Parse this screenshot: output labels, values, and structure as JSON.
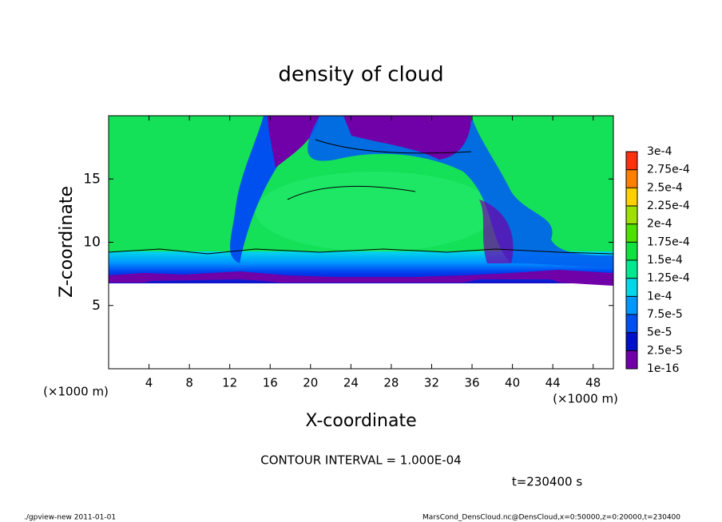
{
  "chart_data": {
    "type": "contour",
    "title": "density of cloud",
    "x_label": "X-coordinate",
    "y_label": "Z-coordinate",
    "x_unit": "(×1000 m)",
    "y_unit": "(×1000 m)",
    "xlim": [
      0,
      50
    ],
    "ylim": [
      0,
      20
    ],
    "xticks": [
      4,
      8,
      12,
      16,
      20,
      24,
      28,
      32,
      36,
      40,
      44,
      48
    ],
    "yticks": [
      5,
      10,
      15
    ],
    "colorbar": {
      "levels": [
        1e-16,
        {
          "value": 2.5e-05,
          "label": "2.5e-5"
        },
        {
          "value": 5e-05,
          "label": "5e-5"
        },
        {
          "value": 7.5e-05,
          "label": "7.5e-5"
        },
        {
          "value": 0.0001,
          "label": "1e-4"
        },
        {
          "value": 0.000125,
          "label": "1.25e-4"
        },
        {
          "value": 0.00015,
          "label": "1.5e-4"
        },
        {
          "value": 0.000175,
          "label": "1.75e-4"
        },
        {
          "value": 0.0002,
          "label": "2e-4"
        },
        {
          "value": 0.000225,
          "label": "2.25e-4"
        },
        {
          "value": 0.00025,
          "label": "2.5e-4"
        },
        {
          "value": 0.000275,
          "label": "2.75e-4"
        },
        {
          "value": 0.0003,
          "label": "3e-4"
        }
      ],
      "colors": [
        "#7000a8",
        "#0010c8",
        "#0050f0",
        "#0098ff",
        "#00d8e8",
        "#00e890",
        "#10e040",
        "#50e000",
        "#a0e000",
        "#ffd000",
        "#ff8000",
        "#ff3010",
        "#ff9090"
      ]
    },
    "contour_interval": "CONTOUR INTERVAL = 1.000E-04",
    "time": "t=230400 s",
    "footer_left": "./gpview-new  2011-01-01",
    "footer_right": "MarsCond_DensCloud.nc@DensCloud,x=0:50000,z=0:20000,t=230400"
  }
}
